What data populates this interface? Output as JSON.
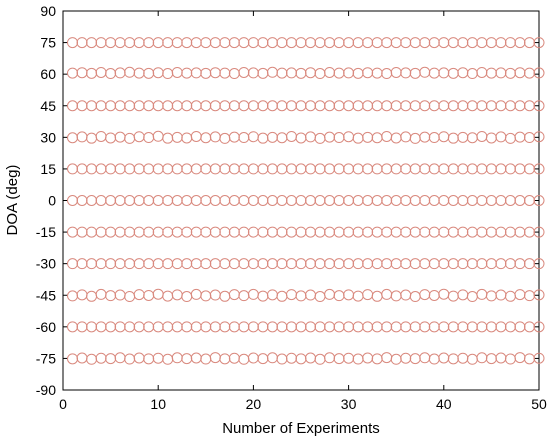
{
  "chart_data": {
    "type": "scatter",
    "title": "",
    "xlabel": "Number of Experiments",
    "ylabel": "DOA (deg)",
    "xlim": [
      0,
      50
    ],
    "ylim": [
      -90,
      90
    ],
    "xticks": [
      0,
      10,
      20,
      30,
      40,
      50
    ],
    "yticks": [
      -90,
      -75,
      -60,
      -45,
      -30,
      -15,
      0,
      15,
      30,
      45,
      60,
      75,
      90
    ],
    "grid": false,
    "legend": "none",
    "marker": "circle",
    "marker_color": "#d9897e",
    "x": [
      1,
      2,
      3,
      4,
      5,
      6,
      7,
      8,
      9,
      10,
      11,
      12,
      13,
      14,
      15,
      16,
      17,
      18,
      19,
      20,
      21,
      22,
      23,
      24,
      25,
      26,
      27,
      28,
      29,
      30,
      31,
      32,
      33,
      34,
      35,
      36,
      37,
      38,
      39,
      40,
      41,
      42,
      43,
      44,
      45,
      46,
      47,
      48,
      49,
      50
    ],
    "series": [
      {
        "y_level": 75,
        "y": [
          75,
          75,
          75,
          75,
          75,
          75,
          75,
          75,
          75,
          75,
          75,
          75,
          75,
          75,
          75,
          75,
          75,
          75,
          75,
          75,
          75,
          75,
          75,
          75,
          75,
          75,
          75,
          75,
          75,
          75,
          75,
          75,
          75,
          75,
          75,
          75,
          75,
          75,
          75,
          75,
          75,
          75,
          75,
          75,
          75,
          75,
          75,
          75,
          75,
          75
        ]
      },
      {
        "y_level": 60,
        "y": [
          60.5,
          60.7,
          60.4,
          60.8,
          60.3,
          60.6,
          60.9,
          60.5,
          60.4,
          60.7,
          60.3,
          60.8,
          60.5,
          60.6,
          60.4,
          60.7,
          60.5,
          60.3,
          60.8,
          60.6,
          60.4,
          60.9,
          60.5,
          60.6,
          60.4,
          60.7,
          60.3,
          60.8,
          60.5,
          60.6,
          60.4,
          60.7,
          60.5,
          60.3,
          60.8,
          60.6,
          60.4,
          60.9,
          60.5,
          60.6,
          60.4,
          60.7,
          60.3,
          60.8,
          60.5,
          60.6,
          60.4,
          60.7,
          60.5,
          60.6
        ]
      },
      {
        "y_level": 45,
        "y": [
          45,
          45,
          45,
          45,
          45,
          45,
          45,
          45,
          45,
          45,
          45,
          45,
          45,
          45,
          45,
          45,
          45,
          45,
          45,
          45,
          45,
          45,
          45,
          45,
          45,
          45,
          45,
          45,
          45,
          45,
          45,
          45,
          45,
          45,
          45,
          45,
          45,
          45,
          45,
          45,
          45,
          45,
          45,
          45,
          45,
          45,
          45,
          45,
          45,
          45
        ]
      },
      {
        "y_level": 30,
        "y": [
          29.8,
          30.2,
          29.6,
          30.4,
          29.7,
          30.1,
          29.5,
          30.3,
          29.9,
          30.5,
          29.6,
          30.0,
          29.7,
          30.4,
          29.8,
          30.2,
          29.5,
          30.1,
          29.9,
          30.3,
          29.6,
          30.0,
          29.8,
          30.4,
          29.7,
          30.2,
          29.5,
          30.1,
          29.9,
          30.3,
          29.6,
          30.0,
          29.8,
          30.4,
          29.7,
          30.2,
          29.5,
          30.1,
          29.9,
          30.3,
          29.6,
          30.0,
          29.8,
          30.4,
          29.7,
          30.2,
          29.5,
          30.1,
          29.9,
          30.3
        ]
      },
      {
        "y_level": 15,
        "y": [
          15,
          15,
          15,
          15,
          15,
          15,
          15,
          15,
          15,
          15,
          15,
          15,
          15,
          15,
          15,
          15,
          15,
          15,
          15,
          15,
          15,
          15,
          15,
          15,
          15,
          15,
          15,
          15,
          15,
          15,
          15,
          15,
          15,
          15,
          15,
          15,
          15,
          15,
          15,
          15,
          15,
          15,
          15,
          15,
          15,
          15,
          15,
          15,
          15,
          15
        ]
      },
      {
        "y_level": 0,
        "y": [
          0,
          0,
          0,
          0,
          0,
          0,
          0,
          0,
          0,
          0,
          0,
          0,
          0,
          0,
          0,
          0,
          0,
          0,
          0,
          0,
          0,
          0,
          0,
          0,
          0,
          0,
          0,
          0,
          0,
          0,
          0,
          0,
          0,
          0,
          0,
          0,
          0,
          0,
          0,
          0,
          0,
          0,
          0,
          0,
          0,
          0,
          0,
          0,
          0,
          0
        ]
      },
      {
        "y_level": -15,
        "y": [
          -15,
          -15,
          -15,
          -15,
          -15,
          -15,
          -15,
          -15,
          -15,
          -15,
          -15,
          -15,
          -15,
          -15,
          -15,
          -15,
          -15,
          -15,
          -15,
          -15,
          -15,
          -15,
          -15,
          -15,
          -15,
          -15,
          -15,
          -15,
          -15,
          -15,
          -15,
          -15,
          -15,
          -15,
          -15,
          -15,
          -15,
          -15,
          -15,
          -15,
          -15,
          -15,
          -15,
          -15,
          -15,
          -15,
          -15,
          -15,
          -15,
          -15
        ]
      },
      {
        "y_level": -30,
        "y": [
          -30,
          -30,
          -30,
          -30,
          -30,
          -30,
          -30,
          -30,
          -30,
          -30,
          -30,
          -30,
          -30,
          -30,
          -30,
          -30,
          -30,
          -30,
          -30,
          -30,
          -30,
          -30,
          -30,
          -30,
          -30,
          -30,
          -30,
          -30,
          -30,
          -30,
          -30,
          -30,
          -30,
          -30,
          -30,
          -30,
          -30,
          -30,
          -30,
          -30,
          -30,
          -30,
          -30,
          -30,
          -30,
          -30,
          -30,
          -30,
          -30,
          -30
        ]
      },
      {
        "y_level": -45,
        "y": [
          -45.3,
          -44.8,
          -45.5,
          -44.6,
          -45.2,
          -44.9,
          -45.6,
          -44.7,
          -45.1,
          -44.5,
          -45.4,
          -44.8,
          -45.6,
          -44.6,
          -45.3,
          -44.9,
          -45.5,
          -44.7,
          -45.2,
          -44.6,
          -45.4,
          -44.8,
          -45.5,
          -44.7,
          -45.3,
          -44.9,
          -45.6,
          -44.6,
          -45.2,
          -44.8,
          -45.4,
          -44.7,
          -45.5,
          -44.6,
          -45.3,
          -44.9,
          -45.6,
          -44.7,
          -45.1,
          -44.5,
          -45.4,
          -44.8,
          -45.6,
          -44.6,
          -45.3,
          -44.9,
          -45.5,
          -44.7,
          -45.2,
          -44.8
        ]
      },
      {
        "y_level": -60,
        "y": [
          -60,
          -60,
          -60,
          -60,
          -60,
          -60,
          -60,
          -60,
          -60,
          -60,
          -60,
          -60,
          -60,
          -60,
          -60,
          -60,
          -60,
          -60,
          -60,
          -60,
          -60,
          -60,
          -60,
          -60,
          -60,
          -60,
          -60,
          -60,
          -60,
          -60,
          -60,
          -60,
          -60,
          -60,
          -60,
          -60,
          -60,
          -60,
          -60,
          -60,
          -60,
          -60,
          -60,
          -60,
          -60,
          -60,
          -60,
          -60,
          -60,
          -60
        ]
      },
      {
        "y_level": -75,
        "y": [
          -75.2,
          -74.8,
          -75.4,
          -74.9,
          -75.1,
          -74.7,
          -75.3,
          -74.8,
          -75.2,
          -74.9,
          -75.4,
          -74.7,
          -75.1,
          -74.8,
          -75.3,
          -74.6,
          -75.2,
          -74.9,
          -75.4,
          -74.8,
          -75.1,
          -74.7,
          -75.3,
          -74.9,
          -75.2,
          -74.8,
          -75.4,
          -74.7,
          -75.1,
          -74.9,
          -75.3,
          -74.8,
          -75.2,
          -74.6,
          -75.4,
          -74.9,
          -75.1,
          -74.7,
          -75.3,
          -74.8,
          -75.2,
          -74.9,
          -75.4,
          -74.7,
          -75.1,
          -74.8,
          -75.3,
          -74.6,
          -75.2,
          -74.9
        ]
      }
    ]
  }
}
